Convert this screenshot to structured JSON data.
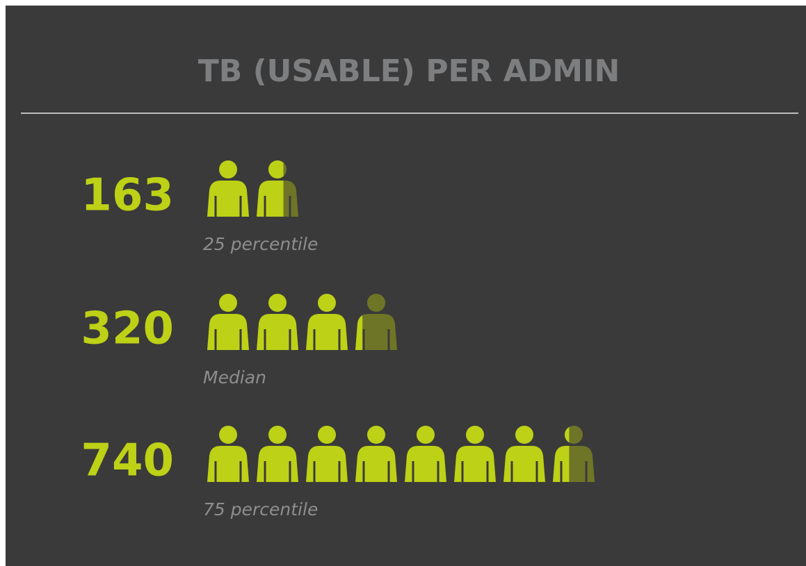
{
  "chart_data": {
    "type": "pictograph",
    "title": "TB (USABLE) PER ADMIN",
    "categories": [
      "25 percentile",
      "Median",
      "75 percentile"
    ],
    "values": [
      163,
      320,
      740
    ],
    "color": "#bdd116",
    "dim_color": "#6f7526"
  }
}
